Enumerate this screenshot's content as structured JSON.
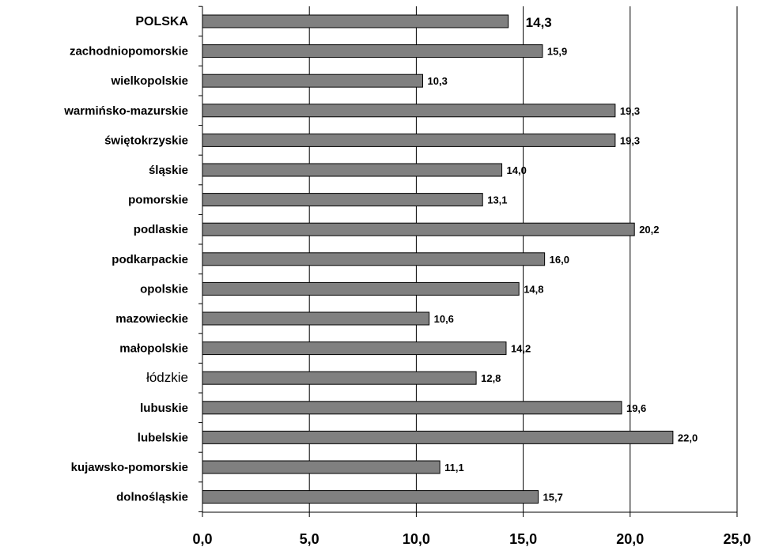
{
  "chart_data": {
    "type": "bar",
    "orientation": "horizontal",
    "categories": [
      "POLSKA",
      "zachodniopomorskie",
      "wielkopolskie",
      "warmińsko-mazurskie",
      "świętokrzyskie",
      "śląskie",
      "pomorskie",
      "podlaskie",
      "podkarpackie",
      "opolskie",
      "mazowieckie",
      "małopolskie",
      "łódzkie",
      "lubuskie",
      "lubelskie",
      "kujawsko-pomorskie",
      "dolnośląskie"
    ],
    "values": [
      14.3,
      15.9,
      10.3,
      19.3,
      19.3,
      14.0,
      13.1,
      20.2,
      16.0,
      14.8,
      10.6,
      14.2,
      12.8,
      19.6,
      22.0,
      11.1,
      15.7
    ],
    "value_labels": [
      "14,3",
      "15,9",
      "10,3",
      "19,3",
      "19,3",
      "14,0",
      "13,1",
      "20,2",
      "16,0",
      "14,8",
      "10,6",
      "14,2",
      "12,8",
      "19,6",
      "22,0",
      "11,1",
      "15,7"
    ],
    "xlim": [
      0,
      25
    ],
    "xticks": [
      0,
      5,
      10,
      15,
      20,
      25
    ],
    "xtick_labels": [
      "0,0",
      "5,0",
      "10,0",
      "15,0",
      "20,0",
      "25,0"
    ],
    "grid": "vertical",
    "title": "",
    "xlabel": "",
    "ylabel": "",
    "bar_color": "#808080",
    "bar_edge_color": "#000000",
    "highlight_category": "POLSKA",
    "normal_weight_category": "łódzkie"
  }
}
